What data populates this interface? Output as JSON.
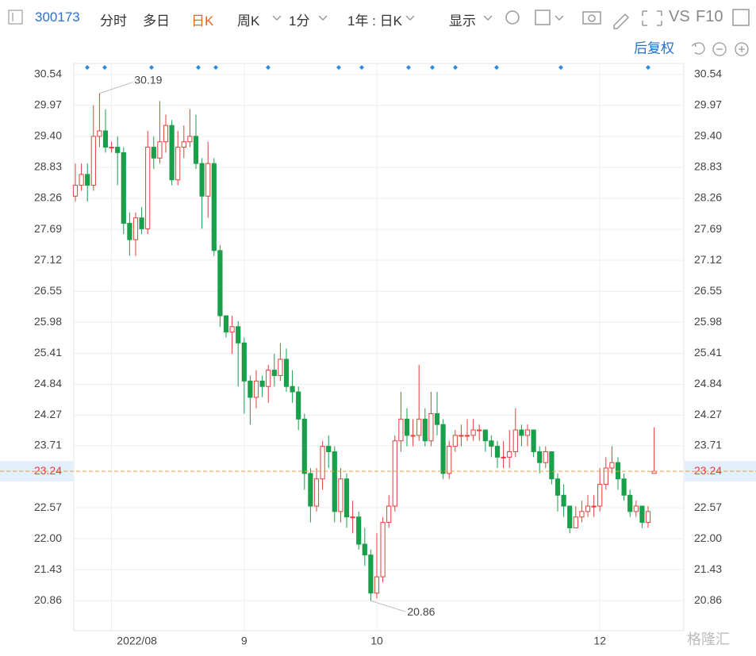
{
  "toolbar": {
    "code": "300173",
    "tabs": [
      "分时",
      "多日",
      "日K",
      "周K",
      "1分",
      "1年 : 日K",
      "显示"
    ],
    "vs": "VS",
    "f10": "F10",
    "adjust": "后复权",
    "watermark": "格隆汇"
  },
  "chart_data": {
    "type": "candlestick",
    "categories": [
      null,
      null,
      null,
      null,
      null,
      null,
      "2022/08",
      null,
      null,
      null,
      null,
      null,
      null,
      null,
      null,
      null,
      null,
      null,
      null,
      null,
      null,
      null,
      null,
      null,
      null,
      null,
      null,
      null,
      "9",
      null,
      null,
      null,
      null,
      null,
      null,
      null,
      null,
      null,
      null,
      null,
      null,
      null,
      null,
      null,
      null,
      null,
      null,
      null,
      null,
      null,
      "10",
      null,
      null,
      null,
      null,
      null,
      null,
      null,
      null,
      null,
      null,
      null,
      null,
      null,
      null,
      null,
      null,
      null,
      null,
      null,
      null,
      null,
      null,
      null,
      null,
      null,
      null,
      null,
      null,
      null,
      null,
      null,
      null,
      null,
      null,
      null,
      null,
      "12",
      null,
      null,
      null,
      null,
      null,
      null,
      null,
      null,
      null
    ],
    "open": [
      28.3,
      28.5,
      28.7,
      28.5,
      29.4,
      29.5,
      29.2,
      29.2,
      29.1,
      27.8,
      27.5,
      27.9,
      27.7,
      29.2,
      29.0,
      29.3,
      29.6,
      28.6,
      29.2,
      29.3,
      29.4,
      28.9,
      28.3,
      28.9,
      27.3,
      26.1,
      25.8,
      25.9,
      25.6,
      24.9,
      24.6,
      24.9,
      24.8,
      25.1,
      25.0,
      25.3,
      24.8,
      24.7,
      24.2,
      23.2,
      22.6,
      23.1,
      23.7,
      23.6,
      22.5,
      23.1,
      22.4,
      22.4,
      21.9,
      21.7,
      21.0,
      21.3,
      22.3,
      22.6,
      23.8,
      24.2,
      23.9,
      23.9,
      24.2,
      23.8,
      24.3,
      24.1,
      23.2,
      23.7,
      23.9,
      23.9,
      23.9,
      24.0,
      24.0,
      23.8,
      23.7,
      23.5,
      23.5,
      23.6,
      24.0,
      23.9,
      24.0,
      23.6,
      23.4,
      23.6,
      23.1,
      22.8,
      22.6,
      22.2,
      22.4,
      22.5,
      22.6,
      22.6,
      23.0,
      23.3,
      23.4,
      23.1,
      22.8,
      22.5,
      22.6,
      22.3,
      23.2
    ],
    "high": [
      28.9,
      28.9,
      28.9,
      29.97,
      30.19,
      29.9,
      29.3,
      29.4,
      29.2,
      28.0,
      28.0,
      28.1,
      29.5,
      29.4,
      30.05,
      29.8,
      29.7,
      29.5,
      29.6,
      29.9,
      29.8,
      29.0,
      29.3,
      29.0,
      27.4,
      26.1,
      26.1,
      26.0,
      25.7,
      25.0,
      25.1,
      25.0,
      25.2,
      25.4,
      25.6,
      25.5,
      25.1,
      24.8,
      24.3,
      23.3,
      23.3,
      23.8,
      23.9,
      23.7,
      23.3,
      23.2,
      22.7,
      22.5,
      22.2,
      21.8,
      22.1,
      22.4,
      22.8,
      23.9,
      24.7,
      24.4,
      24.2,
      25.2,
      24.4,
      24.7,
      24.7,
      24.2,
      23.8,
      24.0,
      24.1,
      24.2,
      24.2,
      24.1,
      24.0,
      23.9,
      23.8,
      23.8,
      24.0,
      24.4,
      24.1,
      24.1,
      24.0,
      23.7,
      23.7,
      23.6,
      23.2,
      23.0,
      22.6,
      22.6,
      22.7,
      22.8,
      22.8,
      23.3,
      23.5,
      23.7,
      23.5,
      23.2,
      22.9,
      22.7,
      22.6,
      22.6,
      24.05
    ],
    "low": [
      28.2,
      28.4,
      28.2,
      28.4,
      29.2,
      29.1,
      29.1,
      28.5,
      27.6,
      27.2,
      27.2,
      27.6,
      27.6,
      28.8,
      28.9,
      29.1,
      28.5,
      28.5,
      29.0,
      29.2,
      28.8,
      27.7,
      27.9,
      27.2,
      25.9,
      25.7,
      25.4,
      24.8,
      24.3,
      24.1,
      24.4,
      24.6,
      24.5,
      24.8,
      24.9,
      24.7,
      24.5,
      24.0,
      22.9,
      22.3,
      22.5,
      22.9,
      23.3,
      22.3,
      22.3,
      22.2,
      22.1,
      21.8,
      21.5,
      20.86,
      20.9,
      21.2,
      22.2,
      22.5,
      23.6,
      23.7,
      23.7,
      23.8,
      23.7,
      23.7,
      23.9,
      23.1,
      23.1,
      23.6,
      23.7,
      23.8,
      23.8,
      23.8,
      23.6,
      23.5,
      23.3,
      23.3,
      23.3,
      23.5,
      23.7,
      23.7,
      23.5,
      23.2,
      23.3,
      23.0,
      22.5,
      22.4,
      22.1,
      22.2,
      22.3,
      22.4,
      22.4,
      22.5,
      22.9,
      23.2,
      22.9,
      22.7,
      22.4,
      22.4,
      22.2,
      22.2,
      23.2
    ],
    "close": [
      28.5,
      28.7,
      28.5,
      29.4,
      29.5,
      29.2,
      29.2,
      29.1,
      27.8,
      27.5,
      27.9,
      27.7,
      29.2,
      29.0,
      29.3,
      29.6,
      28.6,
      29.2,
      29.3,
      29.4,
      28.9,
      28.3,
      28.9,
      27.3,
      26.1,
      25.8,
      25.9,
      25.6,
      24.9,
      24.6,
      24.9,
      24.8,
      25.1,
      25.0,
      25.3,
      24.8,
      24.7,
      24.2,
      23.2,
      22.6,
      23.1,
      23.7,
      23.6,
      22.5,
      23.1,
      22.4,
      22.4,
      21.9,
      21.7,
      21.0,
      21.3,
      22.3,
      22.6,
      23.8,
      24.2,
      23.9,
      23.9,
      24.2,
      23.8,
      24.3,
      24.1,
      23.2,
      23.7,
      23.9,
      23.9,
      23.9,
      24.0,
      24.0,
      23.8,
      23.7,
      23.5,
      23.5,
      23.6,
      24.0,
      23.9,
      24.0,
      23.6,
      23.4,
      23.6,
      23.1,
      22.8,
      22.6,
      22.2,
      22.4,
      22.5,
      22.6,
      22.6,
      23.0,
      23.3,
      23.4,
      23.1,
      22.8,
      22.5,
      22.6,
      22.3,
      22.5,
      23.24
    ],
    "up_color": "#e0403a",
    "down_color": "#1a9f4a",
    "last_color": "#e8a040",
    "ylim": [
      20.31,
      30.74
    ],
    "yticks": [
      30.54,
      29.97,
      {
        "value": 29.4,
        "label": "29.40"
      },
      28.83,
      28.26,
      27.69,
      27.12,
      26.55,
      25.98,
      25.41,
      24.84,
      24.27,
      23.71,
      22.57,
      {
        "value": 22,
        "label": "22.00"
      },
      21.43,
      20.86
    ],
    "grid": true
  }
}
